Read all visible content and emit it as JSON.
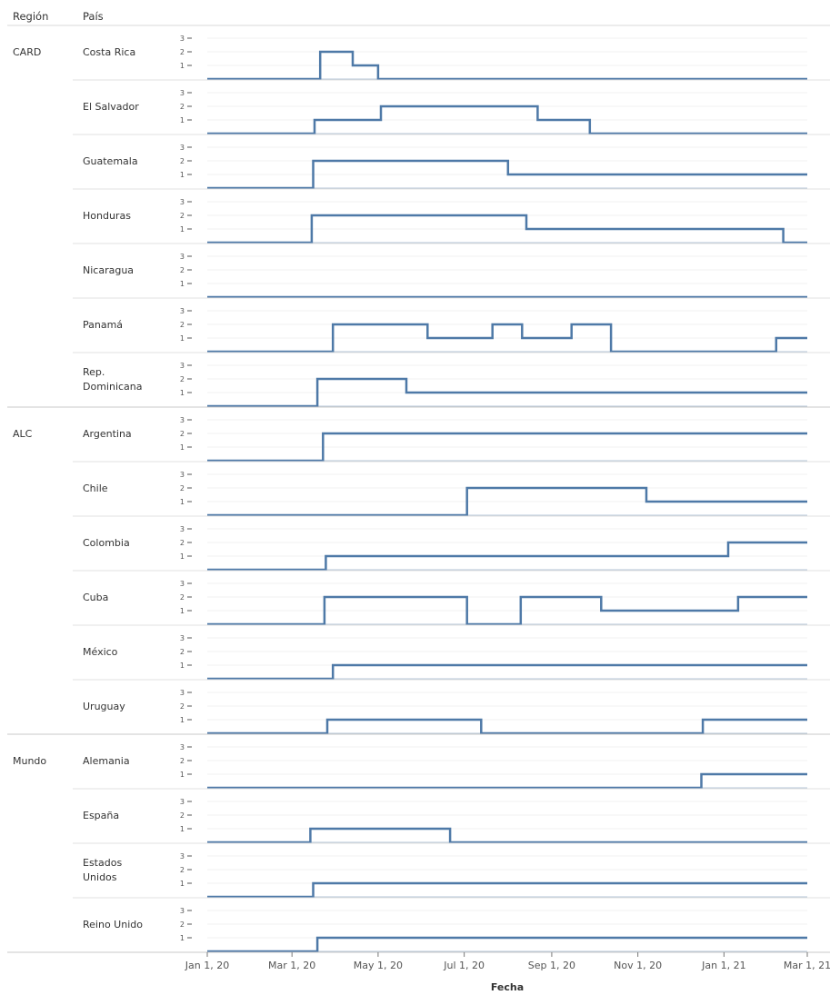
{
  "header": {
    "region_label": "Región",
    "country_label": "País"
  },
  "chart_data": {
    "type": "line",
    "step": true,
    "xlabel": "Fecha",
    "ylabel": "",
    "ylim": [
      0,
      3
    ],
    "y_ticks": [
      "1",
      "2",
      "3"
    ],
    "x_range": [
      "2020-01-01",
      "2021-03-01"
    ],
    "x_ticks": [
      {
        "date": "2020-01-01",
        "label": "Jan 1, 20"
      },
      {
        "date": "2020-03-01",
        "label": "Mar 1, 20"
      },
      {
        "date": "2020-05-01",
        "label": "May 1, 20"
      },
      {
        "date": "2020-07-01",
        "label": "Jul 1, 20"
      },
      {
        "date": "2020-09-01",
        "label": "Sep 1, 20"
      },
      {
        "date": "2020-11-01",
        "label": "Nov 1, 20"
      },
      {
        "date": "2021-01-01",
        "label": "Jan 1, 21"
      },
      {
        "date": "2021-03-01",
        "label": "Mar 1, 21"
      }
    ],
    "line_color": "#4e79a7",
    "regions": [
      {
        "name": "CARD",
        "countries": [
          {
            "name": "Costa Rica",
            "steps": [
              [
                "2020-01-01",
                0
              ],
              [
                "2020-03-21",
                2
              ],
              [
                "2020-04-13",
                1
              ],
              [
                "2020-05-01",
                0
              ],
              [
                "2021-03-01",
                0
              ]
            ]
          },
          {
            "name": "El Salvador",
            "steps": [
              [
                "2020-01-01",
                0
              ],
              [
                "2020-03-17",
                1
              ],
              [
                "2020-05-03",
                2
              ],
              [
                "2020-08-22",
                1
              ],
              [
                "2020-09-28",
                0
              ],
              [
                "2021-03-01",
                0
              ]
            ]
          },
          {
            "name": "Guatemala",
            "steps": [
              [
                "2020-01-01",
                0
              ],
              [
                "2020-03-16",
                2
              ],
              [
                "2020-08-01",
                1
              ],
              [
                "2021-03-01",
                1
              ]
            ]
          },
          {
            "name": "Honduras",
            "steps": [
              [
                "2020-01-01",
                0
              ],
              [
                "2020-03-15",
                2
              ],
              [
                "2020-08-14",
                1
              ],
              [
                "2021-02-12",
                0
              ],
              [
                "2021-03-01",
                0
              ]
            ]
          },
          {
            "name": "Nicaragua",
            "steps": [
              [
                "2020-01-01",
                0
              ],
              [
                "2021-03-01",
                0
              ]
            ]
          },
          {
            "name": "Panamá",
            "steps": [
              [
                "2020-01-01",
                0
              ],
              [
                "2020-03-30",
                2
              ],
              [
                "2020-06-05",
                1
              ],
              [
                "2020-07-21",
                2
              ],
              [
                "2020-08-11",
                1
              ],
              [
                "2020-09-15",
                2
              ],
              [
                "2020-10-13",
                0
              ],
              [
                "2021-02-07",
                1
              ],
              [
                "2021-03-01",
                1
              ]
            ]
          },
          {
            "name": "Rep. Dominicana",
            "steps": [
              [
                "2020-01-01",
                0
              ],
              [
                "2020-03-19",
                2
              ],
              [
                "2020-05-21",
                1
              ],
              [
                "2021-03-01",
                1
              ]
            ]
          }
        ]
      },
      {
        "name": "ALC",
        "countries": [
          {
            "name": "Argentina",
            "steps": [
              [
                "2020-01-01",
                0
              ],
              [
                "2020-03-23",
                2
              ],
              [
                "2021-03-01",
                2
              ]
            ]
          },
          {
            "name": "Chile",
            "steps": [
              [
                "2020-01-01",
                0
              ],
              [
                "2020-07-03",
                2
              ],
              [
                "2020-11-07",
                1
              ],
              [
                "2021-03-01",
                1
              ]
            ]
          },
          {
            "name": "Colombia",
            "steps": [
              [
                "2020-01-01",
                0
              ],
              [
                "2020-03-25",
                1
              ],
              [
                "2021-01-04",
                2
              ],
              [
                "2021-03-01",
                2
              ]
            ]
          },
          {
            "name": "Cuba",
            "steps": [
              [
                "2020-01-01",
                0
              ],
              [
                "2020-03-24",
                2
              ],
              [
                "2020-07-03",
                0
              ],
              [
                "2020-08-10",
                2
              ],
              [
                "2020-10-06",
                1
              ],
              [
                "2021-01-11",
                2
              ],
              [
                "2021-03-01",
                2
              ]
            ]
          },
          {
            "name": "México",
            "steps": [
              [
                "2020-01-01",
                0
              ],
              [
                "2020-03-30",
                1
              ],
              [
                "2021-03-01",
                1
              ]
            ]
          },
          {
            "name": "Uruguay",
            "steps": [
              [
                "2020-01-01",
                0
              ],
              [
                "2020-03-26",
                1
              ],
              [
                "2020-07-13",
                0
              ],
              [
                "2020-12-17",
                1
              ],
              [
                "2021-03-01",
                1
              ]
            ]
          }
        ]
      },
      {
        "name": "Mundo",
        "countries": [
          {
            "name": "Alemania",
            "steps": [
              [
                "2020-01-01",
                0
              ],
              [
                "2020-12-16",
                1
              ],
              [
                "2021-03-01",
                1
              ]
            ]
          },
          {
            "name": "España",
            "steps": [
              [
                "2020-01-01",
                0
              ],
              [
                "2020-03-14",
                1
              ],
              [
                "2020-06-21",
                0
              ],
              [
                "2021-03-01",
                0
              ]
            ]
          },
          {
            "name": "Estados Unidos",
            "steps": [
              [
                "2020-01-01",
                0
              ],
              [
                "2020-03-16",
                1
              ],
              [
                "2021-03-01",
                1
              ]
            ]
          },
          {
            "name": "Reino Unido",
            "steps": [
              [
                "2020-01-01",
                0
              ],
              [
                "2020-03-19",
                1
              ],
              [
                "2021-03-01",
                1
              ]
            ]
          }
        ]
      }
    ]
  }
}
